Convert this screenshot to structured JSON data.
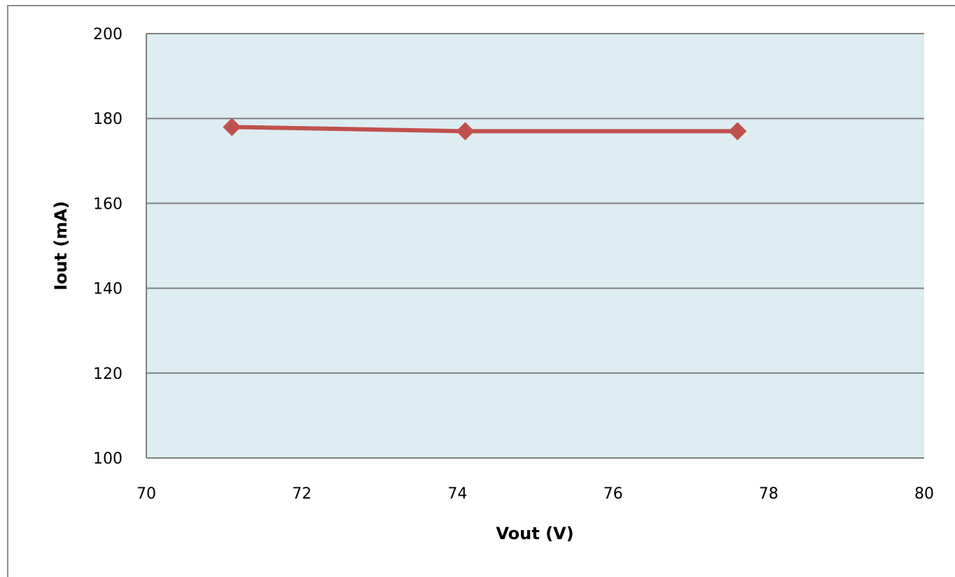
{
  "chart_data": {
    "type": "line",
    "title": "",
    "xlabel": "Vout (V)",
    "ylabel": "Iout (mA)",
    "xlim": [
      70,
      80
    ],
    "ylim": [
      100,
      200
    ],
    "xticks": [
      "70",
      "72",
      "74",
      "76",
      "78",
      "80"
    ],
    "yticks": [
      "100",
      "120",
      "140",
      "160",
      "180",
      "200"
    ],
    "grid": true,
    "legend": "none",
    "series": [
      {
        "x": [
          71.1,
          74.1,
          77.6
        ],
        "y": [
          178,
          177,
          177
        ],
        "color": "#c0504d",
        "marker": "diamond"
      }
    ],
    "colors": {
      "plot_background": "#ddedf2",
      "gridline": "#808080"
    }
  }
}
